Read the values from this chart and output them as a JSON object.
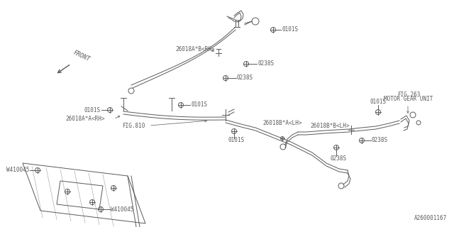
{
  "bg_color": "#ffffff",
  "line_color": "#5a5a5a",
  "text_color": "#5a5a5a",
  "part_number": "A260001167",
  "font_size": 5.5,
  "line_width": 0.7,
  "labels": {
    "front": "FRONT",
    "fig263_1": "FIG.263",
    "fig263_2": "MOTOR GEAR UNIT",
    "fig810": "FIG.810",
    "part_rh_b": "26018A*B<RH>",
    "part_rh_a": "26018A*A<RH>",
    "part_lh_a": "26018B*A<LH>",
    "part_lh_b": "26018B*B<LH>",
    "bolt1": "0101S",
    "bolt2": "0238S",
    "washer": "W410045"
  }
}
